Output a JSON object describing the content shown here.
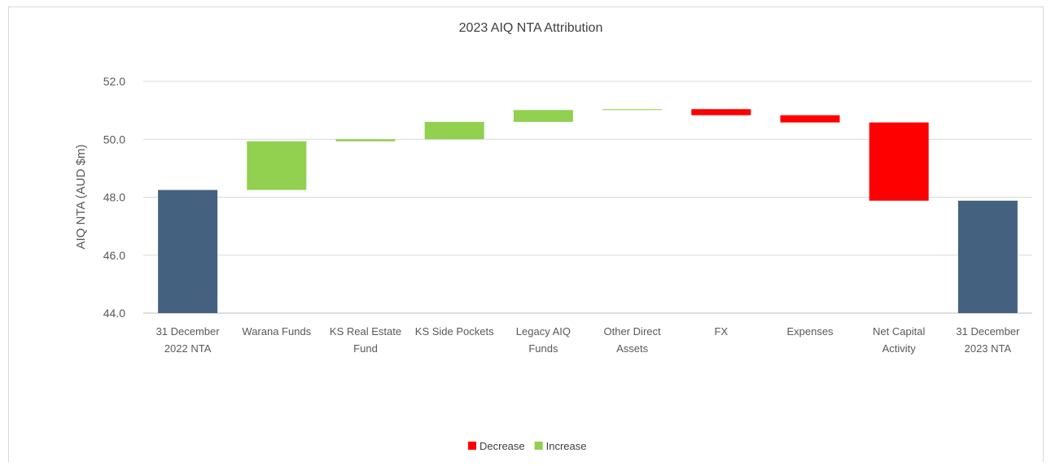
{
  "chart_data": {
    "type": "bar",
    "title": "2023 AIQ NTA Attribution",
    "ylabel": "AIQ NTA (AUD $m)",
    "xlabel": "",
    "ylim": [
      44.0,
      52.0
    ],
    "yticks": [
      "44.0",
      "46.0",
      "48.0",
      "50.0",
      "52.0"
    ],
    "grid": true,
    "legend_position": "bottom",
    "colors": {
      "total": "#44617f",
      "Increase": "#92d050",
      "Decrease": "#ff0000"
    },
    "legend": [
      {
        "name": "Decrease",
        "color": "#ff0000"
      },
      {
        "name": "Increase",
        "color": "#92d050"
      }
    ],
    "categories": [
      [
        "31 December",
        "2022 NTA"
      ],
      [
        "Warana Funds"
      ],
      [
        "KS Real Estate",
        "Fund"
      ],
      [
        "KS Side Pockets"
      ],
      [
        "Legacy AIQ",
        "Funds"
      ],
      [
        "Other Direct",
        "Assets"
      ],
      [
        "FX"
      ],
      [
        "Expenses"
      ],
      [
        "Net Capital",
        "Activity"
      ],
      [
        "31 December",
        "2023 NTA"
      ]
    ],
    "bars": [
      {
        "kind": "total",
        "start": 44.0,
        "end": 48.25
      },
      {
        "kind": "Increase",
        "start": 48.25,
        "end": 49.93
      },
      {
        "kind": "Increase",
        "start": 49.93,
        "end": 50.0
      },
      {
        "kind": "Increase",
        "start": 50.0,
        "end": 50.6
      },
      {
        "kind": "Increase",
        "start": 50.6,
        "end": 51.01
      },
      {
        "kind": "Increase",
        "start": 51.01,
        "end": 51.04
      },
      {
        "kind": "Decrease",
        "start": 51.04,
        "end": 50.83
      },
      {
        "kind": "Decrease",
        "start": 50.83,
        "end": 50.58
      },
      {
        "kind": "Decrease",
        "start": 50.58,
        "end": 47.88
      },
      {
        "kind": "total",
        "start": 44.0,
        "end": 47.88
      }
    ]
  }
}
